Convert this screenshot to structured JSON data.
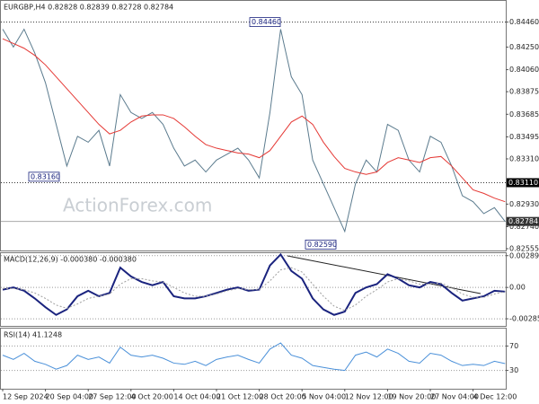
{
  "chart_data": [
    {
      "type": "line",
      "title": "EURGBP,H4 0.82828 0.82839 0.82728 0.82784",
      "watermark": "ActionForex.com",
      "ylim": [
        0.8254,
        0.8454
      ],
      "yticks": [
        {
          "value": 0.8446,
          "label": "0.84460"
        },
        {
          "value": 0.8425,
          "label": "0.84250"
        },
        {
          "value": 0.8406,
          "label": "0.84060"
        },
        0.83875,
        0.83685,
        0.83495,
        {
          "value": 0.8331,
          "label": "0.83310"
        },
        {
          "value": 0.8293,
          "label": "0.82930"
        },
        {
          "value": 0.8274,
          "label": "0.82740"
        },
        0.82555
      ],
      "grid": false,
      "levels": [
        {
          "value": 0.8446
        },
        {
          "value": 0.8311,
          "label": "0.83110"
        }
      ],
      "last_price": {
        "value": 0.82784,
        "label": "0.82784"
      },
      "annotations": [
        {
          "value": 0.8446,
          "label": "0.84460"
        },
        {
          "value": 0.8316,
          "label": "0.83160"
        },
        {
          "value": 0.8259,
          "label": "0.82590"
        }
      ],
      "series": [
        {
          "color": "#5b7b8e",
          "values": [
            0.844,
            0.8425,
            0.844,
            0.842,
            0.8395,
            0.836,
            0.8325,
            0.835,
            0.8345,
            0.8355,
            0.8325,
            0.8385,
            0.837,
            0.8365,
            0.837,
            0.836,
            0.834,
            0.8325,
            0.833,
            0.832,
            0.833,
            0.8335,
            0.834,
            0.833,
            0.8315,
            0.837,
            0.844,
            0.84,
            0.8385,
            0.833,
            0.831,
            0.829,
            0.827,
            0.831,
            0.833,
            0.832,
            0.836,
            0.8355,
            0.833,
            0.832,
            0.835,
            0.8345,
            0.8325,
            0.83,
            0.8295,
            0.8285,
            0.829,
            0.82784
          ]
        },
        {
          "color": "#e53935",
          "values": [
            0.8432,
            0.8428,
            0.8424,
            0.8418,
            0.841,
            0.84,
            0.839,
            0.838,
            0.837,
            0.836,
            0.8352,
            0.8355,
            0.8362,
            0.8367,
            0.8368,
            0.8368,
            0.8365,
            0.8358,
            0.835,
            0.8343,
            0.834,
            0.8338,
            0.8336,
            0.8335,
            0.8332,
            0.8338,
            0.835,
            0.8362,
            0.8367,
            0.836,
            0.8345,
            0.8333,
            0.8323,
            0.832,
            0.8318,
            0.832,
            0.8328,
            0.8332,
            0.833,
            0.8328,
            0.8332,
            0.8333,
            0.8325,
            0.8315,
            0.8305,
            0.8302,
            0.8298,
            0.8295
          ]
        }
      ]
    },
    {
      "type": "line",
      "title": "MACD(12,26,9) -0.000380 -0.000380",
      "ylim": [
        -0.0035,
        0.0032
      ],
      "yticks": [
        0.002893,
        {
          "value": 0,
          "label": "0.00"
        },
        -0.002852
      ],
      "grid": true,
      "series": [
        {
          "color": "#1a237e",
          "values": [
            -0.0002,
            0,
            -0.0003,
            -0.001,
            -0.0018,
            -0.0025,
            -0.002,
            -0.0008,
            -0.0003,
            -0.0008,
            -0.0005,
            0.0018,
            0.001,
            0.0005,
            0.0002,
            0.0005,
            -0.0008,
            -0.001,
            -0.001,
            -0.0008,
            -0.0005,
            -0.0002,
            0,
            -0.0003,
            -0.0002,
            0.002,
            0.003,
            0.0015,
            0.0008,
            -0.001,
            -0.002,
            -0.0025,
            -0.0022,
            -0.0005,
            0,
            0.0003,
            0.0012,
            0.0008,
            0.0002,
            0,
            0.0005,
            0.0003,
            -0.0005,
            -0.0012,
            -0.001,
            -0.0008,
            -0.0003,
            -0.00038
          ]
        },
        {
          "color": "#9e9e9e",
          "values": [
            -0.0001,
            -0.0001,
            -0.0002,
            -0.0005,
            -0.001,
            -0.0016,
            -0.0019,
            -0.0015,
            -0.001,
            -0.0008,
            -0.0006,
            0.0003,
            0.0008,
            0.0008,
            0.0006,
            0.0005,
            0,
            -0.0005,
            -0.0008,
            -0.0008,
            -0.0006,
            -0.0003,
            -0.0001,
            -0.0002,
            -0.0002,
            0.0006,
            0.0016,
            0.0018,
            0.0014,
            0.0003,
            -0.0008,
            -0.0017,
            -0.0021,
            -0.0016,
            -0.0008,
            -0.0002,
            0.0005,
            0.0008,
            0.0006,
            0.0003,
            0.0003,
            0.0004,
            0,
            -0.0006,
            -0.0009,
            -0.0009,
            -0.0006,
            -0.00038
          ]
        }
      ]
    },
    {
      "type": "line",
      "title": "RSI(14) 41.1248",
      "ylim": [
        0,
        100
      ],
      "yticks": [
        70,
        30
      ],
      "grid": true,
      "categories": [
        "12 Sep 2024",
        null,
        null,
        null,
        "20 Sep 04:00",
        null,
        null,
        null,
        "27 Sep 12:00",
        null,
        null,
        null,
        "4 Oct 20:00",
        null,
        null,
        null,
        "14 Oct 04:00",
        null,
        null,
        null,
        "21 Oct 12:00",
        null,
        null,
        null,
        "28 Oct 20:00",
        null,
        null,
        null,
        "5 Nov 04:00",
        null,
        null,
        null,
        "12 Nov 12:00",
        null,
        null,
        null,
        "19 Nov 20:00",
        null,
        null,
        null,
        "27 Nov 04:00",
        null,
        null,
        null,
        "4 Dec 12:00",
        null,
        null,
        null
      ],
      "series": [
        {
          "color": "#4a90d9",
          "values": [
            55,
            48,
            58,
            45,
            40,
            32,
            38,
            55,
            48,
            52,
            42,
            68,
            55,
            52,
            55,
            50,
            42,
            40,
            45,
            38,
            48,
            52,
            55,
            48,
            42,
            65,
            75,
            55,
            50,
            38,
            35,
            32,
            30,
            55,
            60,
            52,
            65,
            58,
            45,
            42,
            58,
            55,
            45,
            38,
            40,
            38,
            45,
            41.1248
          ]
        }
      ]
    }
  ]
}
